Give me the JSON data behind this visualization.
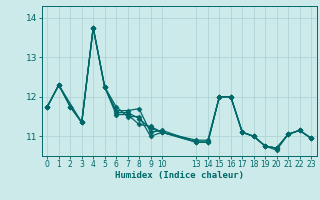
{
  "background_color": "#cceaea",
  "grid_color": "#b0d4d4",
  "line_color": "#006868",
  "xlabel": "Humidex (Indice chaleur)",
  "xlim": [
    -0.5,
    23.5
  ],
  "ylim": [
    10.5,
    14.3
  ],
  "yticks": [
    11,
    12,
    13,
    14
  ],
  "xtick_values": [
    0,
    1,
    2,
    3,
    4,
    5,
    6,
    7,
    8,
    9,
    10,
    13,
    14,
    15,
    16,
    17,
    18,
    19,
    20,
    21,
    22,
    23
  ],
  "series": [
    {
      "x": [
        0,
        1,
        2,
        3,
        4,
        5,
        6,
        7,
        8,
        9,
        10,
        13,
        14,
        15,
        16,
        17,
        18,
        19,
        20,
        21,
        22,
        23
      ],
      "y": [
        11.75,
        12.3,
        11.75,
        11.35,
        13.75,
        12.25,
        11.65,
        11.65,
        11.7,
        11.1,
        11.15,
        10.85,
        10.85,
        12.0,
        12.0,
        11.1,
        11.0,
        10.75,
        10.7,
        11.05,
        11.15,
        10.95
      ]
    },
    {
      "x": [
        0,
        1,
        3,
        4,
        5,
        6,
        7,
        8,
        9,
        10,
        13,
        14,
        15,
        16,
        17,
        18,
        19,
        20,
        21,
        22,
        23
      ],
      "y": [
        11.75,
        12.3,
        11.35,
        13.75,
        12.25,
        11.75,
        11.5,
        11.5,
        11.0,
        11.1,
        10.85,
        10.85,
        12.0,
        12.0,
        11.1,
        11.0,
        10.75,
        10.65,
        11.05,
        11.15,
        10.95
      ]
    },
    {
      "x": [
        0,
        1,
        2,
        3,
        4,
        5,
        6,
        7,
        8,
        9,
        10,
        13,
        14,
        15,
        16,
        17,
        18,
        19,
        20,
        21,
        22,
        23
      ],
      "y": [
        11.75,
        12.3,
        11.75,
        11.35,
        13.75,
        12.25,
        11.55,
        11.55,
        11.3,
        11.25,
        11.1,
        10.85,
        10.85,
        12.0,
        12.0,
        11.1,
        11.0,
        10.75,
        10.7,
        11.05,
        11.15,
        10.95
      ]
    },
    {
      "x": [
        0,
        1,
        2,
        3,
        4,
        5,
        6,
        7,
        8,
        9,
        10,
        13,
        14,
        15,
        16,
        17,
        18,
        19,
        20,
        21,
        22,
        23
      ],
      "y": [
        11.75,
        12.3,
        11.75,
        11.35,
        13.75,
        12.25,
        11.6,
        11.6,
        11.45,
        11.2,
        11.1,
        10.9,
        10.9,
        12.0,
        12.0,
        11.1,
        11.0,
        10.75,
        10.7,
        11.05,
        11.15,
        10.95
      ]
    }
  ],
  "marker": "D",
  "markersize": 2.5,
  "linewidth": 0.9
}
